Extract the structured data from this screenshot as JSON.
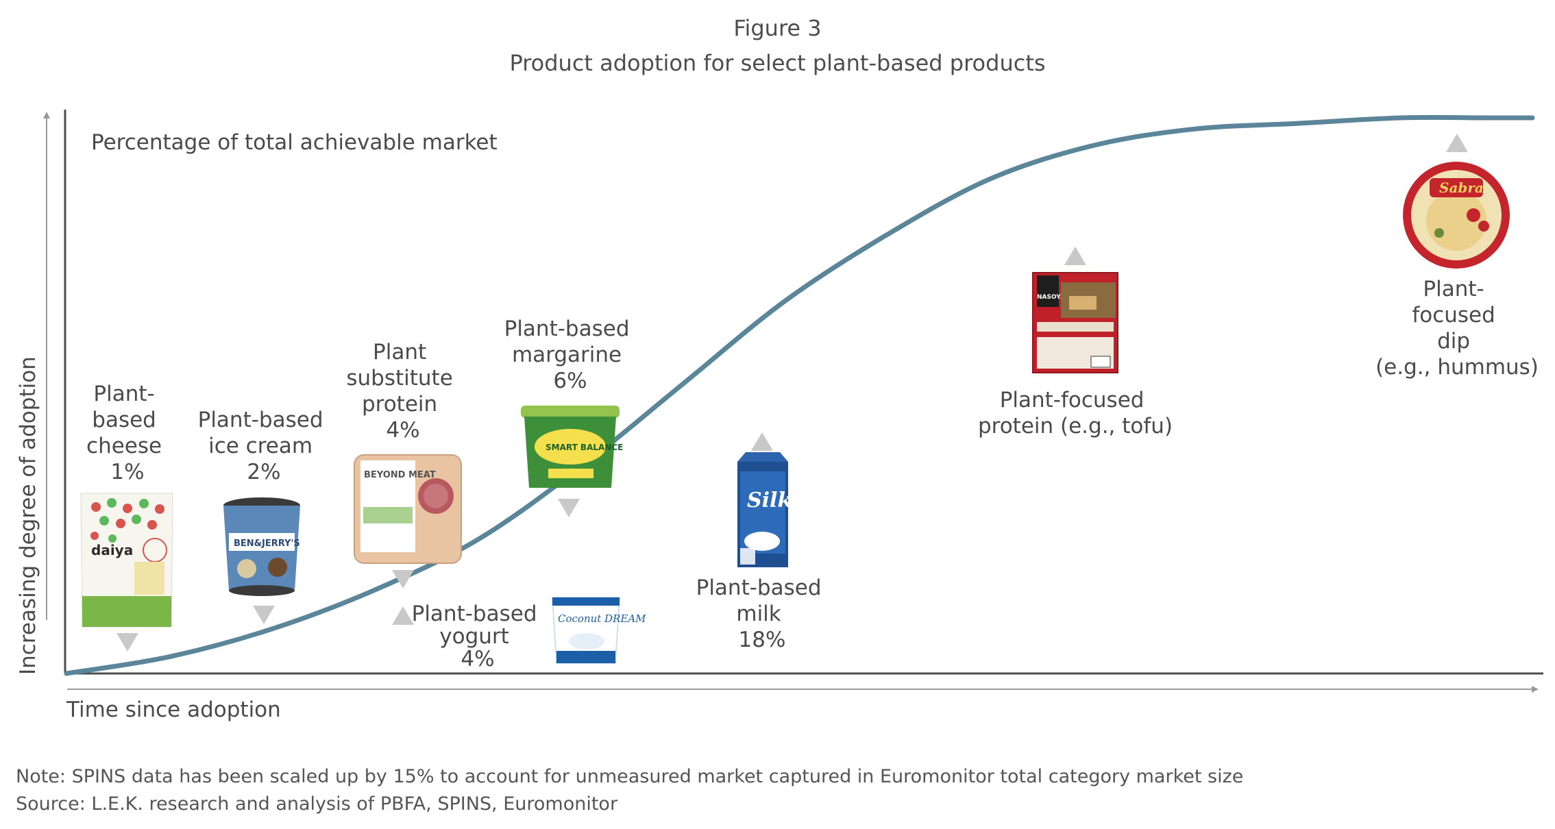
{
  "figure_label": "Figure 3",
  "title": "Product adoption for select plant-based products",
  "note": "Note: SPINS data has been scaled up by 15% to account for unmeasured market captured in Euromonitor total category market size",
  "source": "Source: L.E.K. research and analysis of PBFA, SPINS, Euromonitor",
  "colors": {
    "curve": "#5b8599",
    "axis": "#4d4d4d",
    "arrow_marker": "#c8c8c8",
    "text": "#4a4a4a"
  },
  "chart_data": {
    "type": "line",
    "title": "Product adoption for select plant-based products",
    "xlabel": "Time since adoption",
    "ylabel": "Increasing degree of adoption",
    "y_annotation": "Percentage of total achievable market",
    "grid": false,
    "series": [
      {
        "x": [
          0,
          0.07,
          0.14,
          0.21,
          0.28,
          0.35,
          0.42,
          0.49,
          0.56,
          0.63,
          0.7,
          0.77,
          0.84,
          0.91,
          0.97,
          1.0
        ],
        "values": [
          0,
          0.03,
          0.08,
          0.15,
          0.24,
          0.37,
          0.52,
          0.67,
          0.79,
          0.89,
          0.95,
          0.98,
          0.99,
          1.0,
          1.0,
          1.0
        ]
      }
    ],
    "annotations": [
      {
        "lines": [
          "Plant-",
          "based",
          "cheese",
          "1%"
        ],
        "product": "Daiya mozzarella style shreds",
        "pack_text": "daiya",
        "marker": "down"
      },
      {
        "lines": [
          "Plant-based",
          "ice cream",
          "2%"
        ],
        "product": "Ben & Jerry's non-dairy pint",
        "pack_text": "BEN&JERRY'S",
        "marker": "down"
      },
      {
        "lines": [
          "Plant",
          "substitute",
          "protein",
          "4%"
        ],
        "product": "Beyond Meat burger patties",
        "pack_text": "BEYOND MEAT",
        "marker": "down"
      },
      {
        "lines": [
          "Plant-based",
          "yogurt",
          "4%"
        ],
        "product": "Coconut Dream yogurt",
        "pack_text": "Coconut DREAM",
        "marker": "up"
      },
      {
        "lines": [
          "Plant-based",
          "margarine",
          "6%"
        ],
        "product": "Smart Balance organic spread",
        "pack_text": "SMART BALANCE",
        "marker": "down"
      },
      {
        "lines": [
          "Plant-based",
          "milk",
          "18%"
        ],
        "product": "Silk soymilk carton",
        "pack_text": "Silk",
        "marker": "up"
      },
      {
        "lines": [
          "Plant-focused",
          "protein (e.g., tofu)"
        ],
        "product": "Nasoya extra firm tofu",
        "pack_text": "NASOYA",
        "marker": "up"
      },
      {
        "lines": [
          "Plant-",
          "focused",
          "dip",
          "(e.g., hummus)"
        ],
        "product": "Sabra roasted red pepper hummus",
        "pack_text": "Sabra",
        "marker": "up"
      }
    ]
  }
}
